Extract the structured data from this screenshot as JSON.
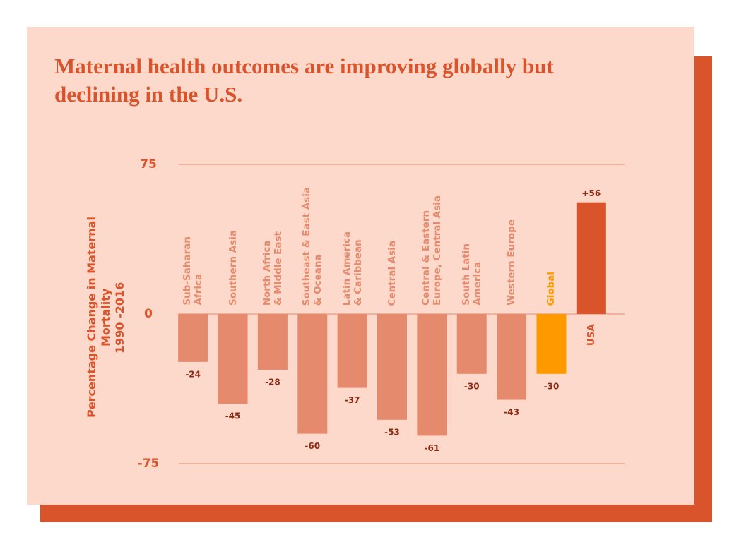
{
  "chart_data": {
    "type": "bar",
    "title": "Maternal health outcomes are improving globally but\ndeclining in the U.S.",
    "y_label": "Percentage Change in Maternal Mortality\n1990 -2016",
    "categories": [
      "Sub-Saharan\nAfrica",
      "Southern Asia",
      "North Africa\n& Middle East",
      "Southeast & East Asia\n& Oceana",
      "Latin America\n& Caribbean",
      "Central Asia",
      "Central & Eastern\nEurope, Central Asia",
      "South Latin\nAmerica",
      "Western Europe",
      "Global",
      "USA"
    ],
    "values": [
      -24,
      -45,
      -28,
      -60,
      -37,
      -53,
      -61,
      -30,
      -43,
      -30,
      56
    ],
    "value_labels": [
      "-24",
      "-45",
      "-28",
      "-60",
      "-37",
      "-53",
      "-61",
      "-30",
      "-43",
      "-30",
      "+56"
    ],
    "colors": [
      "#e58a6c",
      "#e58a6c",
      "#e58a6c",
      "#e58a6c",
      "#e58a6c",
      "#e58a6c",
      "#e58a6c",
      "#e58a6c",
      "#e58a6c",
      "#ff9900",
      "#d9532b"
    ],
    "ylim": [
      -75,
      75
    ],
    "yticks": [
      -75,
      0,
      75
    ],
    "grid": true
  }
}
